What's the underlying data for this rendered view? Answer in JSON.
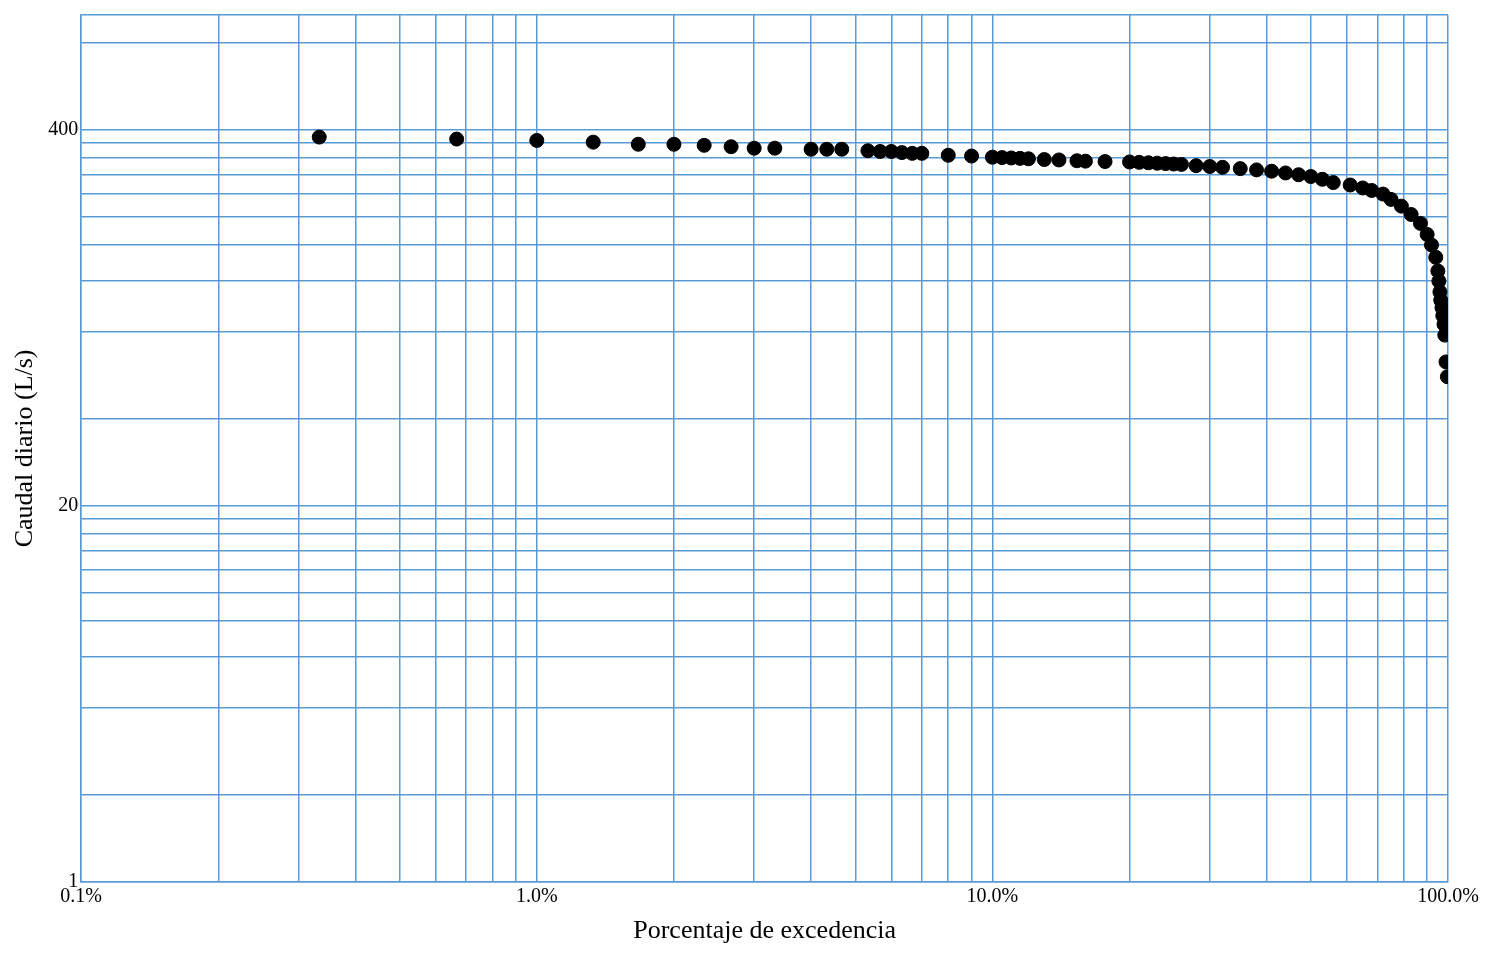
{
  "chart_data": {
    "type": "scatter",
    "xlabel": "Porcentaje de excedencia",
    "ylabel": "Caudal diario (L/s)",
    "log": "xy",
    "grid": true,
    "legend": false,
    "marker": "circle",
    "xlim": [
      0.1,
      100
    ],
    "ylim": [
      1,
      1000
    ],
    "xticks": [
      {
        "value": 0.1,
        "label": "0.1%"
      },
      {
        "value": 0.2,
        "label": null
      },
      {
        "value": 0.3,
        "label": null
      },
      {
        "value": 0.4,
        "label": null
      },
      {
        "value": 0.5,
        "label": null
      },
      {
        "value": 0.6,
        "label": null
      },
      {
        "value": 0.7,
        "label": null
      },
      {
        "value": 0.8,
        "label": null
      },
      {
        "value": 0.9,
        "label": null
      },
      {
        "value": 1,
        "label": "1.0%"
      },
      {
        "value": 2,
        "label": null
      },
      {
        "value": 3,
        "label": null
      },
      {
        "value": 4,
        "label": null
      },
      {
        "value": 5,
        "label": null
      },
      {
        "value": 6,
        "label": null
      },
      {
        "value": 7,
        "label": null
      },
      {
        "value": 8,
        "label": null
      },
      {
        "value": 9,
        "label": null
      },
      {
        "value": 10,
        "label": "10.0%"
      },
      {
        "value": 20,
        "label": null
      },
      {
        "value": 30,
        "label": null
      },
      {
        "value": 40,
        "label": null
      },
      {
        "value": 50,
        "label": null
      },
      {
        "value": 60,
        "label": null
      },
      {
        "value": 70,
        "label": null
      },
      {
        "value": 80,
        "label": null
      },
      {
        "value": 90,
        "label": null
      },
      {
        "value": 100,
        "label": "100.0%"
      }
    ],
    "yticks": [
      1,
      {
        "value": 2,
        "label": null
      },
      {
        "value": 4,
        "label": null
      },
      {
        "value": 6,
        "label": null
      },
      {
        "value": 8,
        "label": null
      },
      {
        "value": 10,
        "label": null
      },
      {
        "value": 12,
        "label": null
      },
      {
        "value": 14,
        "label": null
      },
      {
        "value": 16,
        "label": null
      },
      {
        "value": 18,
        "label": null
      },
      20,
      {
        "value": 40,
        "label": null
      },
      {
        "value": 80,
        "label": null
      },
      {
        "value": 120,
        "label": null
      },
      {
        "value": 160,
        "label": null
      },
      {
        "value": 200,
        "label": null
      },
      {
        "value": 240,
        "label": null
      },
      {
        "value": 280,
        "label": null
      },
      {
        "value": 320,
        "label": null
      },
      {
        "value": 360,
        "label": null
      },
      400,
      {
        "value": 800,
        "label": null
      },
      {
        "value": 1000,
        "label": null
      }
    ],
    "series": [
      {
        "color": "#000000",
        "x": [
          0.333,
          0.667,
          1.0,
          1.33,
          1.67,
          2.0,
          2.33,
          2.67,
          3.0,
          3.33,
          4.0,
          4.33,
          4.67,
          5.33,
          5.67,
          6.0,
          6.33,
          6.67,
          7.0,
          8.0,
          9.0,
          10.0,
          10.5,
          11.0,
          11.5,
          12.0,
          13.0,
          14.0,
          15.33,
          16.0,
          17.67,
          20.0,
          21.0,
          22.0,
          23.0,
          24.0,
          25.0,
          26.0,
          28.0,
          30.0,
          32.0,
          35.0,
          38.0,
          41.0,
          44.0,
          47.0,
          50.0,
          53.0,
          56.0,
          61.0,
          65.0,
          68.0,
          72.0,
          75.0,
          79.0,
          83.0,
          87.0,
          90.0,
          92.0,
          94.0,
          95.0,
          95.5,
          96.0,
          96.4,
          97.0,
          97.4,
          98.0,
          98.4,
          99.0,
          99.7
        ],
        "values": [
          378,
          372,
          368,
          363,
          357,
          357,
          354,
          350,
          346,
          346,
          343,
          343,
          343,
          339,
          337,
          337,
          334,
          332,
          332,
          327,
          325,
          322,
          321,
          320,
          319,
          318,
          316,
          315,
          313,
          312,
          311,
          310,
          309,
          308,
          307,
          306,
          305,
          304,
          301,
          299,
          297,
          294,
          291,
          288,
          284,
          280,
          276,
          270,
          263,
          258,
          252,
          247,
          240,
          230,
          218,
          204,
          190,
          174,
          160,
          145,
          130,
          120,
          110,
          103,
          97,
          91,
          85,
          78,
          63,
          56
        ]
      }
    ]
  }
}
